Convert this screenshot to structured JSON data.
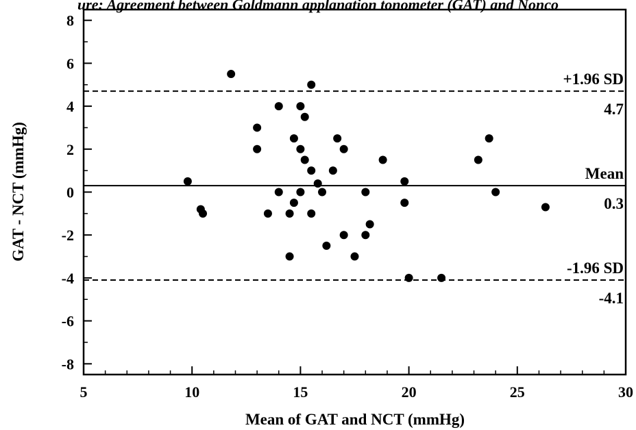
{
  "caption": "ure: Agreement between Goldmann applanation tonometer (GAT) and Nonco",
  "chart_data": {
    "type": "scatter",
    "title": "",
    "xlabel": "Mean of GAT and NCT (mmHg)",
    "ylabel": "GAT - NCT (mmHg)",
    "xlim": [
      5,
      30
    ],
    "ylim": [
      -8.5,
      8.5
    ],
    "xticks": [
      "5",
      "10",
      "15",
      "20",
      "25",
      "30"
    ],
    "yticks": [
      "-8",
      "-6",
      "-4",
      "-2",
      "0",
      "2",
      "4",
      "6",
      "8"
    ],
    "grid": false,
    "reference_lines": [
      {
        "name": "+1.96 SD",
        "value_label": "4.7",
        "y": 4.7,
        "style": "dashed"
      },
      {
        "name": "Mean",
        "value_label": "0.3",
        "y": 0.3,
        "style": "solid"
      },
      {
        "name": "-1.96 SD",
        "value_label": "-4.1",
        "y": -4.1,
        "style": "dashed"
      }
    ],
    "points": [
      {
        "x": 9.8,
        "y": 0.5
      },
      {
        "x": 10.4,
        "y": -0.8
      },
      {
        "x": 10.5,
        "y": -1.0
      },
      {
        "x": 11.8,
        "y": 5.5
      },
      {
        "x": 13.0,
        "y": 3.0
      },
      {
        "x": 13.0,
        "y": 2.0
      },
      {
        "x": 13.5,
        "y": -1.0
      },
      {
        "x": 14.0,
        "y": 4.0
      },
      {
        "x": 14.0,
        "y": 0.0
      },
      {
        "x": 14.5,
        "y": -1.0
      },
      {
        "x": 14.5,
        "y": -3.0
      },
      {
        "x": 14.7,
        "y": 2.5
      },
      {
        "x": 14.7,
        "y": -0.5
      },
      {
        "x": 15.0,
        "y": 4.0
      },
      {
        "x": 15.0,
        "y": 2.0
      },
      {
        "x": 15.0,
        "y": 0.0
      },
      {
        "x": 15.2,
        "y": 3.5
      },
      {
        "x": 15.2,
        "y": 1.5
      },
      {
        "x": 15.5,
        "y": 5.0
      },
      {
        "x": 15.5,
        "y": 1.0
      },
      {
        "x": 15.5,
        "y": -1.0
      },
      {
        "x": 15.8,
        "y": 0.4
      },
      {
        "x": 16.0,
        "y": 0.0
      },
      {
        "x": 16.2,
        "y": -2.5
      },
      {
        "x": 16.5,
        "y": 1.0
      },
      {
        "x": 16.7,
        "y": 2.5
      },
      {
        "x": 17.0,
        "y": 2.0
      },
      {
        "x": 17.0,
        "y": -2.0
      },
      {
        "x": 17.5,
        "y": -3.0
      },
      {
        "x": 18.0,
        "y": 0.0
      },
      {
        "x": 18.0,
        "y": -2.0
      },
      {
        "x": 18.2,
        "y": -1.5
      },
      {
        "x": 18.8,
        "y": 1.5
      },
      {
        "x": 19.8,
        "y": 0.5
      },
      {
        "x": 19.8,
        "y": -0.5
      },
      {
        "x": 20.0,
        "y": -4.0
      },
      {
        "x": 21.5,
        "y": -4.0
      },
      {
        "x": 23.2,
        "y": 1.5
      },
      {
        "x": 23.7,
        "y": 2.5
      },
      {
        "x": 24.0,
        "y": 0.0
      },
      {
        "x": 26.3,
        "y": -0.7
      }
    ]
  }
}
